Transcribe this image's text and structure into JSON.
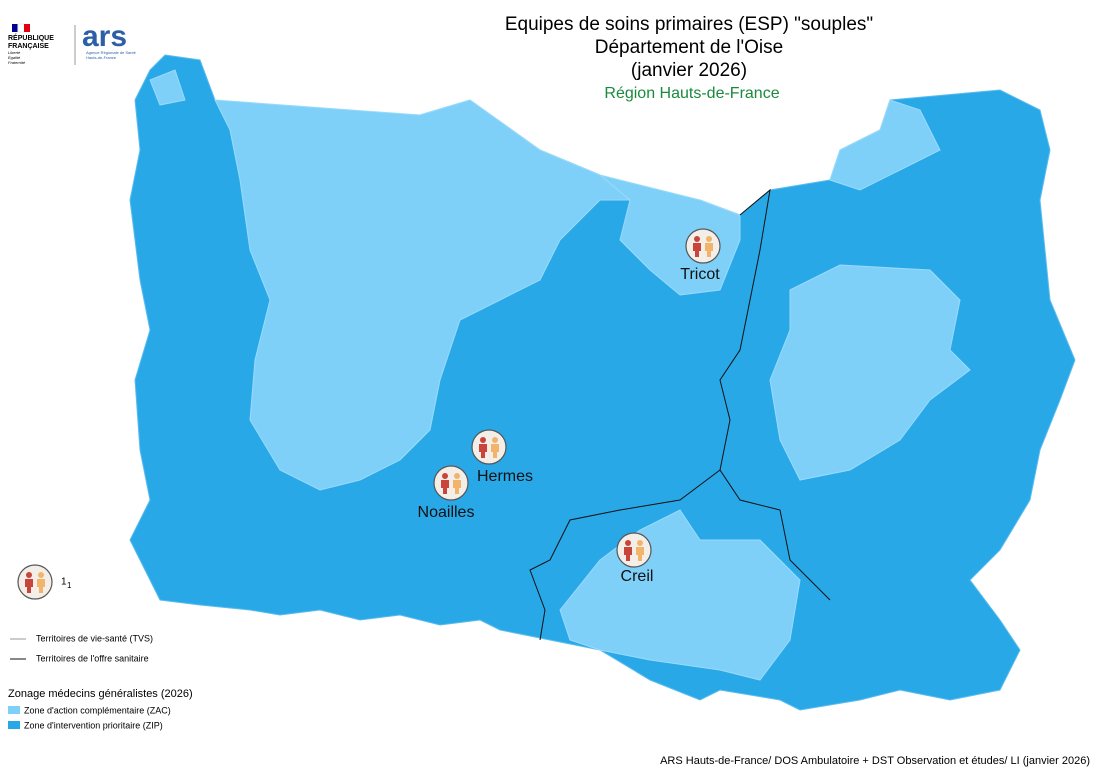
{
  "header": {
    "republique": [
      "RÉPUBLIQUE",
      "FRANÇAISE"
    ],
    "motto": [
      "Liberté",
      "Égalité",
      "Fraternité"
    ],
    "ars": "ars",
    "ars_sub": [
      "Agence Régionale de Santé",
      "Hauts-de-France"
    ]
  },
  "title": {
    "line1": "Equipes de soins primaires (ESP) \"souples\"",
    "line2": "Département de l'Oise",
    "line3": "(janvier 2026)",
    "region": "Région Hauts-de-France"
  },
  "map": {
    "sites": [
      {
        "label": "Tricot"
      },
      {
        "label": "Hermes"
      },
      {
        "label": "Noailles"
      },
      {
        "label": "Creil"
      }
    ]
  },
  "legend": {
    "icon_count": "1",
    "icon_count_sub": "1",
    "tvs": "Territoires de vie-santé (TVS)",
    "tos": "Territoires de l'offre sanitaire",
    "zonage_title": "Zonage médecins généralistes (2026)",
    "zac": "Zone d'action complémentaire (ZAC)",
    "zip": "Zone d'intervention prioritaire (ZIP)"
  },
  "source": "ARS Hauts-de-France/ DOS Ambulatoire + DST Observation et études/ LI (janvier 2026)"
}
